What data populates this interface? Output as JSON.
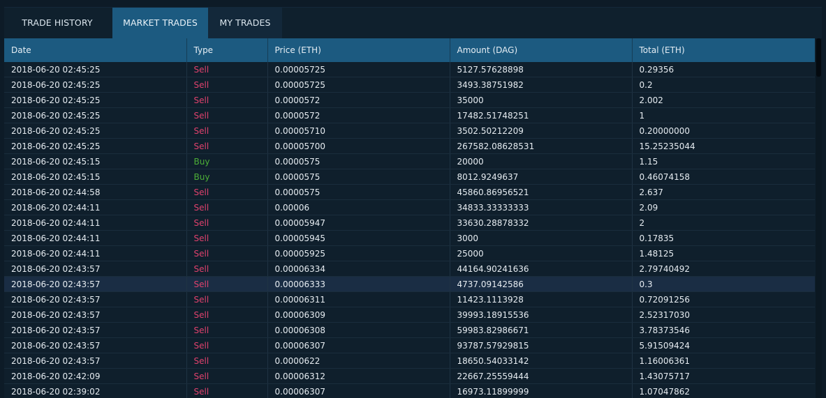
{
  "tabs": [
    {
      "label": "TRADE HISTORY",
      "state": "inactive"
    },
    {
      "label": "MARKET TRADES",
      "state": "active"
    },
    {
      "label": "MY TRADES",
      "state": "inactive"
    }
  ],
  "table": {
    "headers": [
      "Date",
      "Type",
      "Price (ETH)",
      "Amount (DAG)",
      "Total (ETH)"
    ],
    "highlight_row": 14,
    "type_colors": {
      "Sell": "#e0416d",
      "Buy": "#4caf37"
    },
    "rows": [
      [
        "2018-06-20 02:45:25",
        "Sell",
        "0.00005725",
        "5127.57628898",
        "0.29356"
      ],
      [
        "2018-06-20 02:45:25",
        "Sell",
        "0.00005725",
        "3493.38751982",
        "0.2"
      ],
      [
        "2018-06-20 02:45:25",
        "Sell",
        "0.0000572",
        "35000",
        "2.002"
      ],
      [
        "2018-06-20 02:45:25",
        "Sell",
        "0.0000572",
        "17482.51748251",
        "1"
      ],
      [
        "2018-06-20 02:45:25",
        "Sell",
        "0.00005710",
        "3502.50212209",
        "0.20000000"
      ],
      [
        "2018-06-20 02:45:25",
        "Sell",
        "0.00005700",
        "267582.08628531",
        "15.25235044"
      ],
      [
        "2018-06-20 02:45:15",
        "Buy",
        "0.0000575",
        "20000",
        "1.15"
      ],
      [
        "2018-06-20 02:45:15",
        "Buy",
        "0.0000575",
        "8012.9249637",
        "0.46074158"
      ],
      [
        "2018-06-20 02:44:58",
        "Sell",
        "0.0000575",
        "45860.86956521",
        "2.637"
      ],
      [
        "2018-06-20 02:44:11",
        "Sell",
        "0.00006",
        "34833.33333333",
        "2.09"
      ],
      [
        "2018-06-20 02:44:11",
        "Sell",
        "0.00005947",
        "33630.28878332",
        "2"
      ],
      [
        "2018-06-20 02:44:11",
        "Sell",
        "0.00005945",
        "3000",
        "0.17835"
      ],
      [
        "2018-06-20 02:44:11",
        "Sell",
        "0.00005925",
        "25000",
        "1.48125"
      ],
      [
        "2018-06-20 02:43:57",
        "Sell",
        "0.00006334",
        "44164.90241636",
        "2.79740492"
      ],
      [
        "2018-06-20 02:43:57",
        "Sell",
        "0.00006333",
        "4737.09142586",
        "0.3"
      ],
      [
        "2018-06-20 02:43:57",
        "Sell",
        "0.00006311",
        "11423.1113928",
        "0.72091256"
      ],
      [
        "2018-06-20 02:43:57",
        "Sell",
        "0.00006309",
        "39993.18915536",
        "2.52317030"
      ],
      [
        "2018-06-20 02:43:57",
        "Sell",
        "0.00006308",
        "59983.82986671",
        "3.78373546"
      ],
      [
        "2018-06-20 02:43:57",
        "Sell",
        "0.00006307",
        "93787.57929815",
        "5.91509424"
      ],
      [
        "2018-06-20 02:43:57",
        "Sell",
        "0.0000622",
        "18650.54033142",
        "1.16006361"
      ],
      [
        "2018-06-20 02:42:09",
        "Sell",
        "0.00006312",
        "22667.25559444",
        "1.43075717"
      ],
      [
        "2018-06-20 02:39:02",
        "Sell",
        "0.00006307",
        "16973.11899999",
        "1.07047862"
      ]
    ]
  }
}
